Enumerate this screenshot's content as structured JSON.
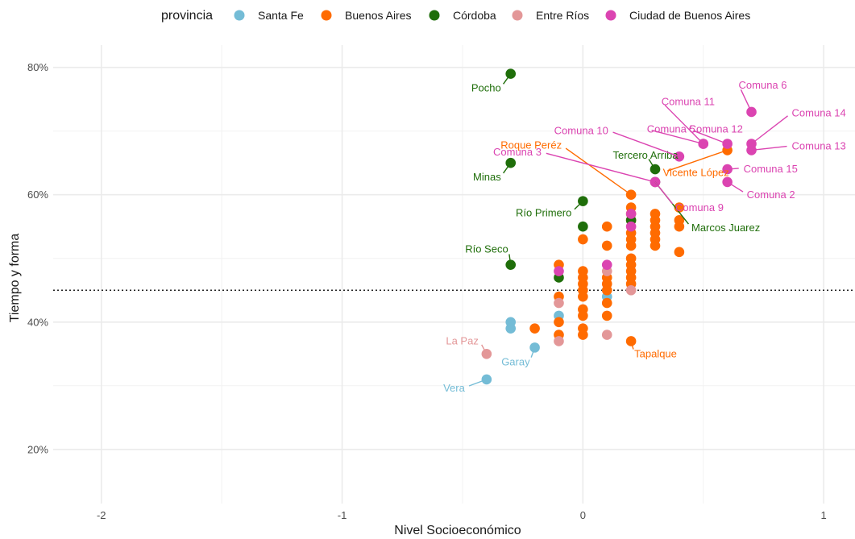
{
  "chart_data": {
    "type": "scatter",
    "xlabel": "Nivel Socioeconómico",
    "ylabel": "Tiempo y forma",
    "xlim": [
      -2.2,
      1.13
    ],
    "ylim": [
      0.115,
      0.835
    ],
    "x_ticks": [
      -2,
      -1,
      0,
      1
    ],
    "x_tick_labels": [
      "-2",
      "-1",
      "0",
      "1"
    ],
    "y_ticks": [
      0.2,
      0.4,
      0.6,
      0.8
    ],
    "y_tick_labels": [
      "20%",
      "40%",
      "60%",
      "80%"
    ],
    "reference_line": {
      "y": 0.45,
      "style": "dotted"
    },
    "grid": true,
    "legend": {
      "title": "provincia",
      "position": "top",
      "entries": [
        {
          "name": "Santa Fe",
          "color": "#74bcd6"
        },
        {
          "name": "Buenos Aires",
          "color": "#ff6b00"
        },
        {
          "name": "Córdoba",
          "color": "#1f6e0a"
        },
        {
          "name": "Entre Ríos",
          "color": "#e39798"
        },
        {
          "name": "Ciudad de Buenos Aires",
          "color": "#db44b1"
        }
      ]
    },
    "series": [
      {
        "name": "Santa Fe",
        "color": "#74bcd6",
        "points": [
          {
            "x": -0.4,
            "y": 0.31,
            "label": "Vera"
          },
          {
            "x": -0.2,
            "y": 0.36,
            "label": "Garay"
          },
          {
            "x": -0.3,
            "y": 0.4
          },
          {
            "x": -0.3,
            "y": 0.39
          },
          {
            "x": -0.1,
            "y": 0.41
          },
          {
            "x": 0.1,
            "y": 0.44
          }
        ]
      },
      {
        "name": "Buenos Aires",
        "color": "#ff6b00",
        "points": [
          {
            "x": 0.2,
            "y": 0.6,
            "label": "Roque Peréz"
          },
          {
            "x": 0.2,
            "y": 0.37,
            "label": "Tapalque"
          },
          {
            "x": 0.6,
            "y": 0.67,
            "label": "Vicente López"
          },
          {
            "x": -0.2,
            "y": 0.39
          },
          {
            "x": -0.1,
            "y": 0.49
          },
          {
            "x": -0.1,
            "y": 0.44
          },
          {
            "x": -0.1,
            "y": 0.4
          },
          {
            "x": -0.1,
            "y": 0.38
          },
          {
            "x": 0.0,
            "y": 0.53
          },
          {
            "x": 0.0,
            "y": 0.48
          },
          {
            "x": 0.0,
            "y": 0.47
          },
          {
            "x": 0.0,
            "y": 0.46
          },
          {
            "x": 0.0,
            "y": 0.45
          },
          {
            "x": 0.0,
            "y": 0.44
          },
          {
            "x": 0.0,
            "y": 0.42
          },
          {
            "x": 0.0,
            "y": 0.41
          },
          {
            "x": 0.0,
            "y": 0.39
          },
          {
            "x": 0.0,
            "y": 0.38
          },
          {
            "x": 0.1,
            "y": 0.55
          },
          {
            "x": 0.1,
            "y": 0.52
          },
          {
            "x": 0.1,
            "y": 0.47
          },
          {
            "x": 0.1,
            "y": 0.46
          },
          {
            "x": 0.1,
            "y": 0.45
          },
          {
            "x": 0.1,
            "y": 0.43
          },
          {
            "x": 0.1,
            "y": 0.41
          },
          {
            "x": 0.2,
            "y": 0.58
          },
          {
            "x": 0.2,
            "y": 0.57
          },
          {
            "x": 0.2,
            "y": 0.56
          },
          {
            "x": 0.2,
            "y": 0.54
          },
          {
            "x": 0.2,
            "y": 0.53
          },
          {
            "x": 0.2,
            "y": 0.52
          },
          {
            "x": 0.2,
            "y": 0.5
          },
          {
            "x": 0.2,
            "y": 0.49
          },
          {
            "x": 0.2,
            "y": 0.48
          },
          {
            "x": 0.2,
            "y": 0.47
          },
          {
            "x": 0.2,
            "y": 0.46
          },
          {
            "x": 0.3,
            "y": 0.57
          },
          {
            "x": 0.3,
            "y": 0.56
          },
          {
            "x": 0.3,
            "y": 0.55
          },
          {
            "x": 0.3,
            "y": 0.54
          },
          {
            "x": 0.3,
            "y": 0.53
          },
          {
            "x": 0.3,
            "y": 0.52
          },
          {
            "x": 0.4,
            "y": 0.58
          },
          {
            "x": 0.4,
            "y": 0.56
          },
          {
            "x": 0.4,
            "y": 0.55
          },
          {
            "x": 0.4,
            "y": 0.51
          }
        ]
      },
      {
        "name": "Córdoba",
        "color": "#1f6e0a",
        "points": [
          {
            "x": -0.3,
            "y": 0.79,
            "label": "Pocho"
          },
          {
            "x": -0.3,
            "y": 0.65,
            "label": "Minas"
          },
          {
            "x": -0.3,
            "y": 0.49,
            "label": "Río Seco"
          },
          {
            "x": 0.0,
            "y": 0.59,
            "label": "Río Primero"
          },
          {
            "x": 0.3,
            "y": 0.64,
            "label": "Tercero Arriba"
          },
          {
            "x": 0.3,
            "y": 0.62,
            "label": "Marcos Juarez"
          },
          {
            "x": 0.0,
            "y": 0.55
          },
          {
            "x": -0.1,
            "y": 0.47
          },
          {
            "x": 0.2,
            "y": 0.56
          }
        ]
      },
      {
        "name": "Entre Ríos",
        "color": "#e39798",
        "points": [
          {
            "x": -0.4,
            "y": 0.35,
            "label": "La Paz"
          },
          {
            "x": -0.1,
            "y": 0.43
          },
          {
            "x": -0.1,
            "y": 0.37
          },
          {
            "x": 0.1,
            "y": 0.48
          },
          {
            "x": 0.1,
            "y": 0.38
          },
          {
            "x": 0.2,
            "y": 0.45
          }
        ]
      },
      {
        "name": "Ciudad de Buenos Aires",
        "color": "#db44b1",
        "points": [
          {
            "x": 0.7,
            "y": 0.73,
            "label": "Comuna 6"
          },
          {
            "x": 0.5,
            "y": 0.68,
            "label": "Comuna 11"
          },
          {
            "x": 0.7,
            "y": 0.68,
            "label": "Comuna 14"
          },
          {
            "x": 0.4,
            "y": 0.66,
            "label": "Comuna 10"
          },
          {
            "x": 0.5,
            "y": 0.68,
            "label": "Comuna 5"
          },
          {
            "x": 0.6,
            "y": 0.68,
            "label": "Comuna 12"
          },
          {
            "x": 0.7,
            "y": 0.67,
            "label": "Comuna 13"
          },
          {
            "x": 0.3,
            "y": 0.62,
            "label": "Comuna 3"
          },
          {
            "x": 0.6,
            "y": 0.64,
            "label": "Comuna 15"
          },
          {
            "x": 0.3,
            "y": 0.62,
            "label": "Comuna 9"
          },
          {
            "x": 0.6,
            "y": 0.62,
            "label": "Comuna 2"
          },
          {
            "x": 0.2,
            "y": 0.57
          },
          {
            "x": 0.2,
            "y": 0.55
          },
          {
            "x": 0.1,
            "y": 0.49
          },
          {
            "x": -0.1,
            "y": 0.48
          }
        ]
      }
    ]
  }
}
